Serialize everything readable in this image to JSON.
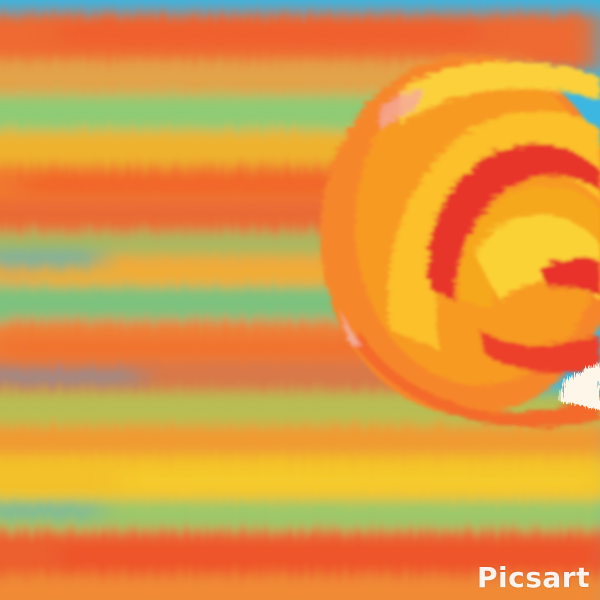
{
  "image": {
    "kind": "abstract painting",
    "watermark_text": "Picsart",
    "colors": {
      "sky_blue": "#2fb6e6",
      "orange": "#f07a2e",
      "red_orange": "#ec5a2c",
      "yellow": "#f2c02a",
      "green": "#8cc66a",
      "sun_orange": "#f8a21c",
      "sun_red": "#e8322a",
      "sun_yellow": "#fbd33a",
      "white": "#ffffff"
    }
  }
}
